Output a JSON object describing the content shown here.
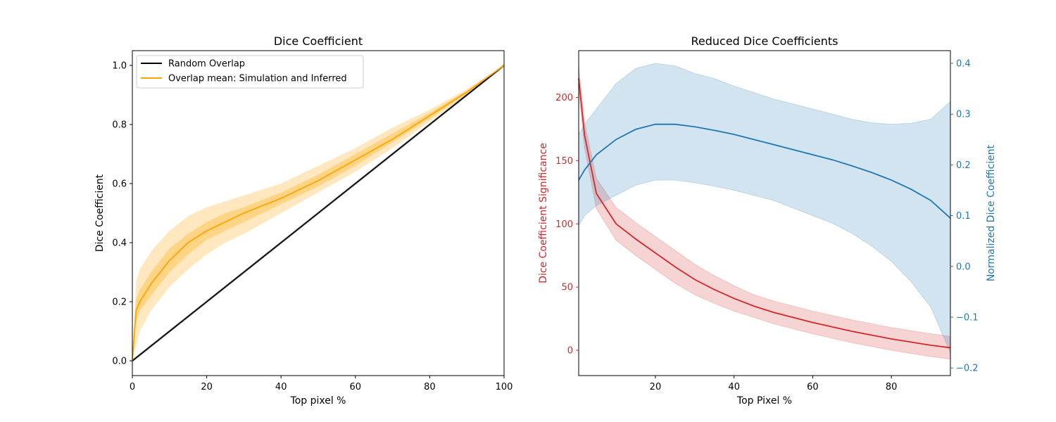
{
  "chart_data": [
    {
      "type": "line",
      "title": "Dice Coefficient",
      "xlabel": "Top pixel %",
      "ylabel": "Dice Coefficient",
      "xlim": [
        0,
        100
      ],
      "ylim": [
        -0.05,
        1.05
      ],
      "xticks": [
        0,
        20,
        40,
        60,
        80,
        100
      ],
      "yticks": [
        0.0,
        0.2,
        0.4,
        0.6,
        0.8,
        1.0
      ],
      "grid": false,
      "legend_position": "upper-left",
      "series": [
        {
          "name": "Random Overlap",
          "color": "#000000",
          "x": [
            0,
            100
          ],
          "y": [
            0.0,
            1.0
          ],
          "band_lower": [
            -0.005,
            0.995
          ],
          "band_upper": [
            0.005,
            1.005
          ]
        },
        {
          "name": "Overlap mean: Simulation and Inferred",
          "color": "#ffa500",
          "x": [
            0,
            1,
            2,
            5,
            10,
            15,
            20,
            25,
            30,
            40,
            50,
            60,
            70,
            80,
            90,
            100
          ],
          "y": [
            0.0,
            0.17,
            0.2,
            0.26,
            0.34,
            0.4,
            0.44,
            0.47,
            0.5,
            0.55,
            0.61,
            0.68,
            0.75,
            0.83,
            0.91,
            1.0
          ],
          "band_inner_lower": [
            0.0,
            0.13,
            0.17,
            0.22,
            0.3,
            0.36,
            0.41,
            0.44,
            0.47,
            0.53,
            0.59,
            0.66,
            0.74,
            0.82,
            0.905,
            1.0
          ],
          "band_inner_upper": [
            0.0,
            0.21,
            0.24,
            0.3,
            0.38,
            0.43,
            0.47,
            0.5,
            0.52,
            0.57,
            0.63,
            0.7,
            0.77,
            0.84,
            0.915,
            1.0
          ],
          "band_outer_lower": [
            0.0,
            0.05,
            0.1,
            0.17,
            0.25,
            0.31,
            0.36,
            0.4,
            0.43,
            0.5,
            0.57,
            0.64,
            0.72,
            0.81,
            0.9,
            1.0
          ],
          "band_outer_upper": [
            0.0,
            0.27,
            0.31,
            0.37,
            0.44,
            0.49,
            0.52,
            0.54,
            0.56,
            0.6,
            0.66,
            0.72,
            0.79,
            0.85,
            0.92,
            1.0
          ]
        }
      ]
    },
    {
      "type": "line",
      "title": "Reduced Dice Coefficients",
      "xlabel": "Top Pixel %",
      "ylabel_left": "Dice Coefficient Significance",
      "ylabel_right": "Normalized Dice Coefficient",
      "xlim": [
        0.5,
        95
      ],
      "ylim_left": [
        -20,
        237
      ],
      "ylim_right": [
        -0.215,
        0.425
      ],
      "xticks": [
        20,
        40,
        60,
        80
      ],
      "yticks_left": [
        0,
        50,
        100,
        150,
        200
      ],
      "yticks_right": [
        -0.2,
        -0.1,
        0.0,
        0.1,
        0.2,
        0.3,
        0.4
      ],
      "yticks_right_labels": [
        "−0.2",
        "−0.1",
        "0.0",
        "0.1",
        "0.2",
        "0.3",
        "0.4"
      ],
      "grid": false,
      "series": [
        {
          "axis": "left",
          "color": "#d62728",
          "x": [
            0.5,
            2,
            5,
            10,
            15,
            20,
            25,
            30,
            35,
            40,
            45,
            50,
            60,
            70,
            80,
            90,
            95
          ],
          "y": [
            215,
            170,
            124,
            100,
            88,
            77,
            66,
            56,
            48,
            41,
            35,
            30,
            22,
            15,
            9,
            4,
            2
          ],
          "band_lower": [
            205,
            160,
            112,
            87,
            75,
            64,
            53,
            44,
            37,
            31,
            26,
            21,
            13,
            6,
            0,
            -5,
            -7
          ],
          "band_upper": [
            225,
            180,
            136,
            113,
            101,
            90,
            79,
            68,
            59,
            51,
            44,
            39,
            31,
            24,
            18,
            13,
            11
          ]
        },
        {
          "axis": "right",
          "color": "#1f77b4",
          "x": [
            0.5,
            2,
            5,
            10,
            15,
            20,
            25,
            30,
            35,
            40,
            50,
            60,
            65,
            70,
            75,
            80,
            85,
            90,
            95
          ],
          "y": [
            0.17,
            0.19,
            0.22,
            0.25,
            0.27,
            0.28,
            0.28,
            0.275,
            0.268,
            0.26,
            0.24,
            0.22,
            0.21,
            0.198,
            0.185,
            0.17,
            0.152,
            0.13,
            0.095
          ],
          "band_lower": [
            0.08,
            0.1,
            0.12,
            0.14,
            0.16,
            0.17,
            0.17,
            0.165,
            0.158,
            0.15,
            0.13,
            0.1,
            0.085,
            0.065,
            0.04,
            0.01,
            -0.03,
            -0.08,
            -0.17
          ],
          "band_upper": [
            0.26,
            0.28,
            0.31,
            0.36,
            0.39,
            0.4,
            0.395,
            0.38,
            0.37,
            0.355,
            0.33,
            0.31,
            0.3,
            0.29,
            0.283,
            0.28,
            0.282,
            0.29,
            0.325
          ]
        }
      ]
    }
  ]
}
